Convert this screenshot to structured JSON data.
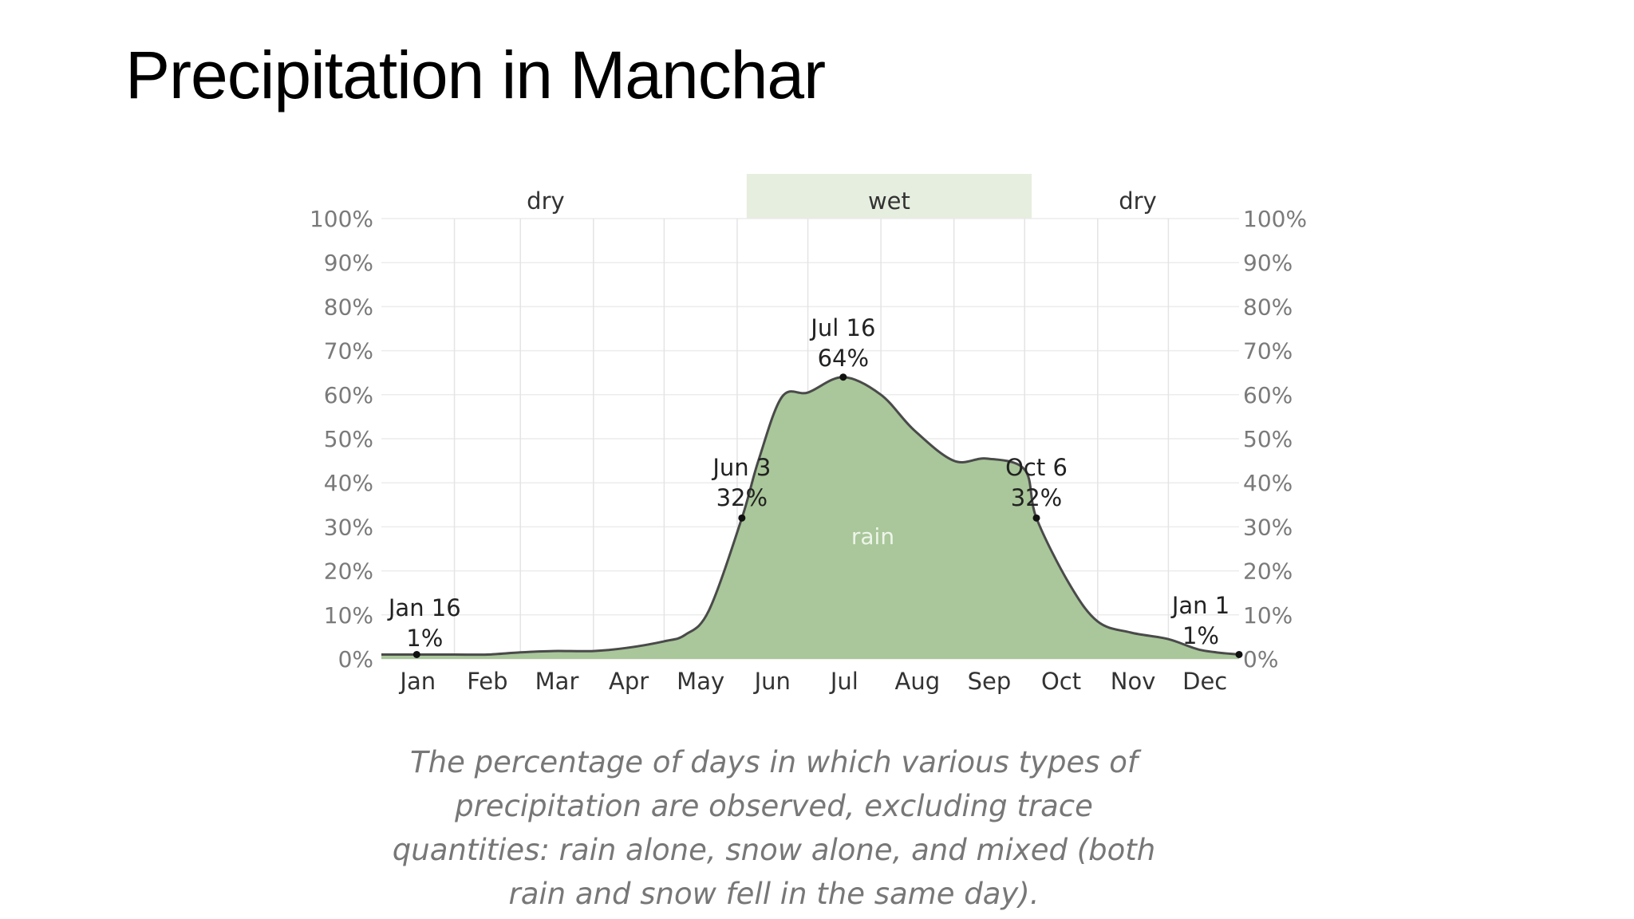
{
  "slide": {
    "title": "Precipitation in Manchar",
    "caption": "The percentage of days in which various types of precipitation are observed, excluding trace quantities: rain alone, snow alone, and mixed (both rain and snow fell in the same day)."
  },
  "chart_data": {
    "type": "area",
    "title": "",
    "xlabel": "",
    "ylabel": "",
    "ylim": [
      0,
      100
    ],
    "y_ticks": [
      "0%",
      "10%",
      "20%",
      "30%",
      "40%",
      "50%",
      "60%",
      "70%",
      "80%",
      "90%",
      "100%"
    ],
    "y_tick_values": [
      0,
      10,
      20,
      30,
      40,
      50,
      60,
      70,
      80,
      90,
      100
    ],
    "months": [
      "Jan",
      "Feb",
      "Mar",
      "Apr",
      "May",
      "Jun",
      "Jul",
      "Aug",
      "Sep",
      "Oct",
      "Nov",
      "Dec"
    ],
    "grid": true,
    "series": [
      {
        "name": "rain",
        "color": "#a9c79a",
        "line_color": "#4a4a4a",
        "x": [
          "Jan 1",
          "Jan 16",
          "Feb 1",
          "Feb 15",
          "Mar 1",
          "Mar 15",
          "Apr 1",
          "Apr 15",
          "May 1",
          "May 10",
          "May 20",
          "Jun 3",
          "Jun 10",
          "Jun 20",
          "Jul 1",
          "Jul 16",
          "Aug 1",
          "Aug 15",
          "Sep 1",
          "Sep 15",
          "Oct 1",
          "Oct 6",
          "Oct 20",
          "Nov 1",
          "Nov 15",
          "Dec 1",
          "Dec 15",
          "Dec 31"
        ],
        "y": [
          1.0,
          1.0,
          1.0,
          1.0,
          1.5,
          1.8,
          1.8,
          2.5,
          4.0,
          5.5,
          11.0,
          32.0,
          45.0,
          59.5,
          60.5,
          64.0,
          60.0,
          52.0,
          45.0,
          45.5,
          43.0,
          32.0,
          17.0,
          8.5,
          6.0,
          4.5,
          2.0,
          1.0
        ]
      }
    ],
    "seasons": [
      {
        "label": "dry",
        "start": "Jan 1",
        "end": "Jun 3",
        "highlighted": false
      },
      {
        "label": "wet",
        "start": "Jun 3",
        "end": "Oct 6",
        "highlighted": true,
        "color": "#e6eedf"
      },
      {
        "label": "dry",
        "start": "Oct 6",
        "end": "Dec 31",
        "highlighted": false
      }
    ],
    "annotations": [
      {
        "date": "Jan 16",
        "value": 1,
        "line1": "Jan 16",
        "line2": "1%"
      },
      {
        "date": "Jun 3",
        "value": 32,
        "line1": "Jun 3",
        "line2": "32%"
      },
      {
        "date": "Jul 16",
        "value": 64,
        "line1": "Jul 16",
        "line2": "64%"
      },
      {
        "date": "Oct 6",
        "value": 32,
        "line1": "Oct 6",
        "line2": "32%"
      },
      {
        "date": "Jan 1",
        "value": 1,
        "line1": "Jan 1",
        "line2": "1%"
      }
    ]
  }
}
